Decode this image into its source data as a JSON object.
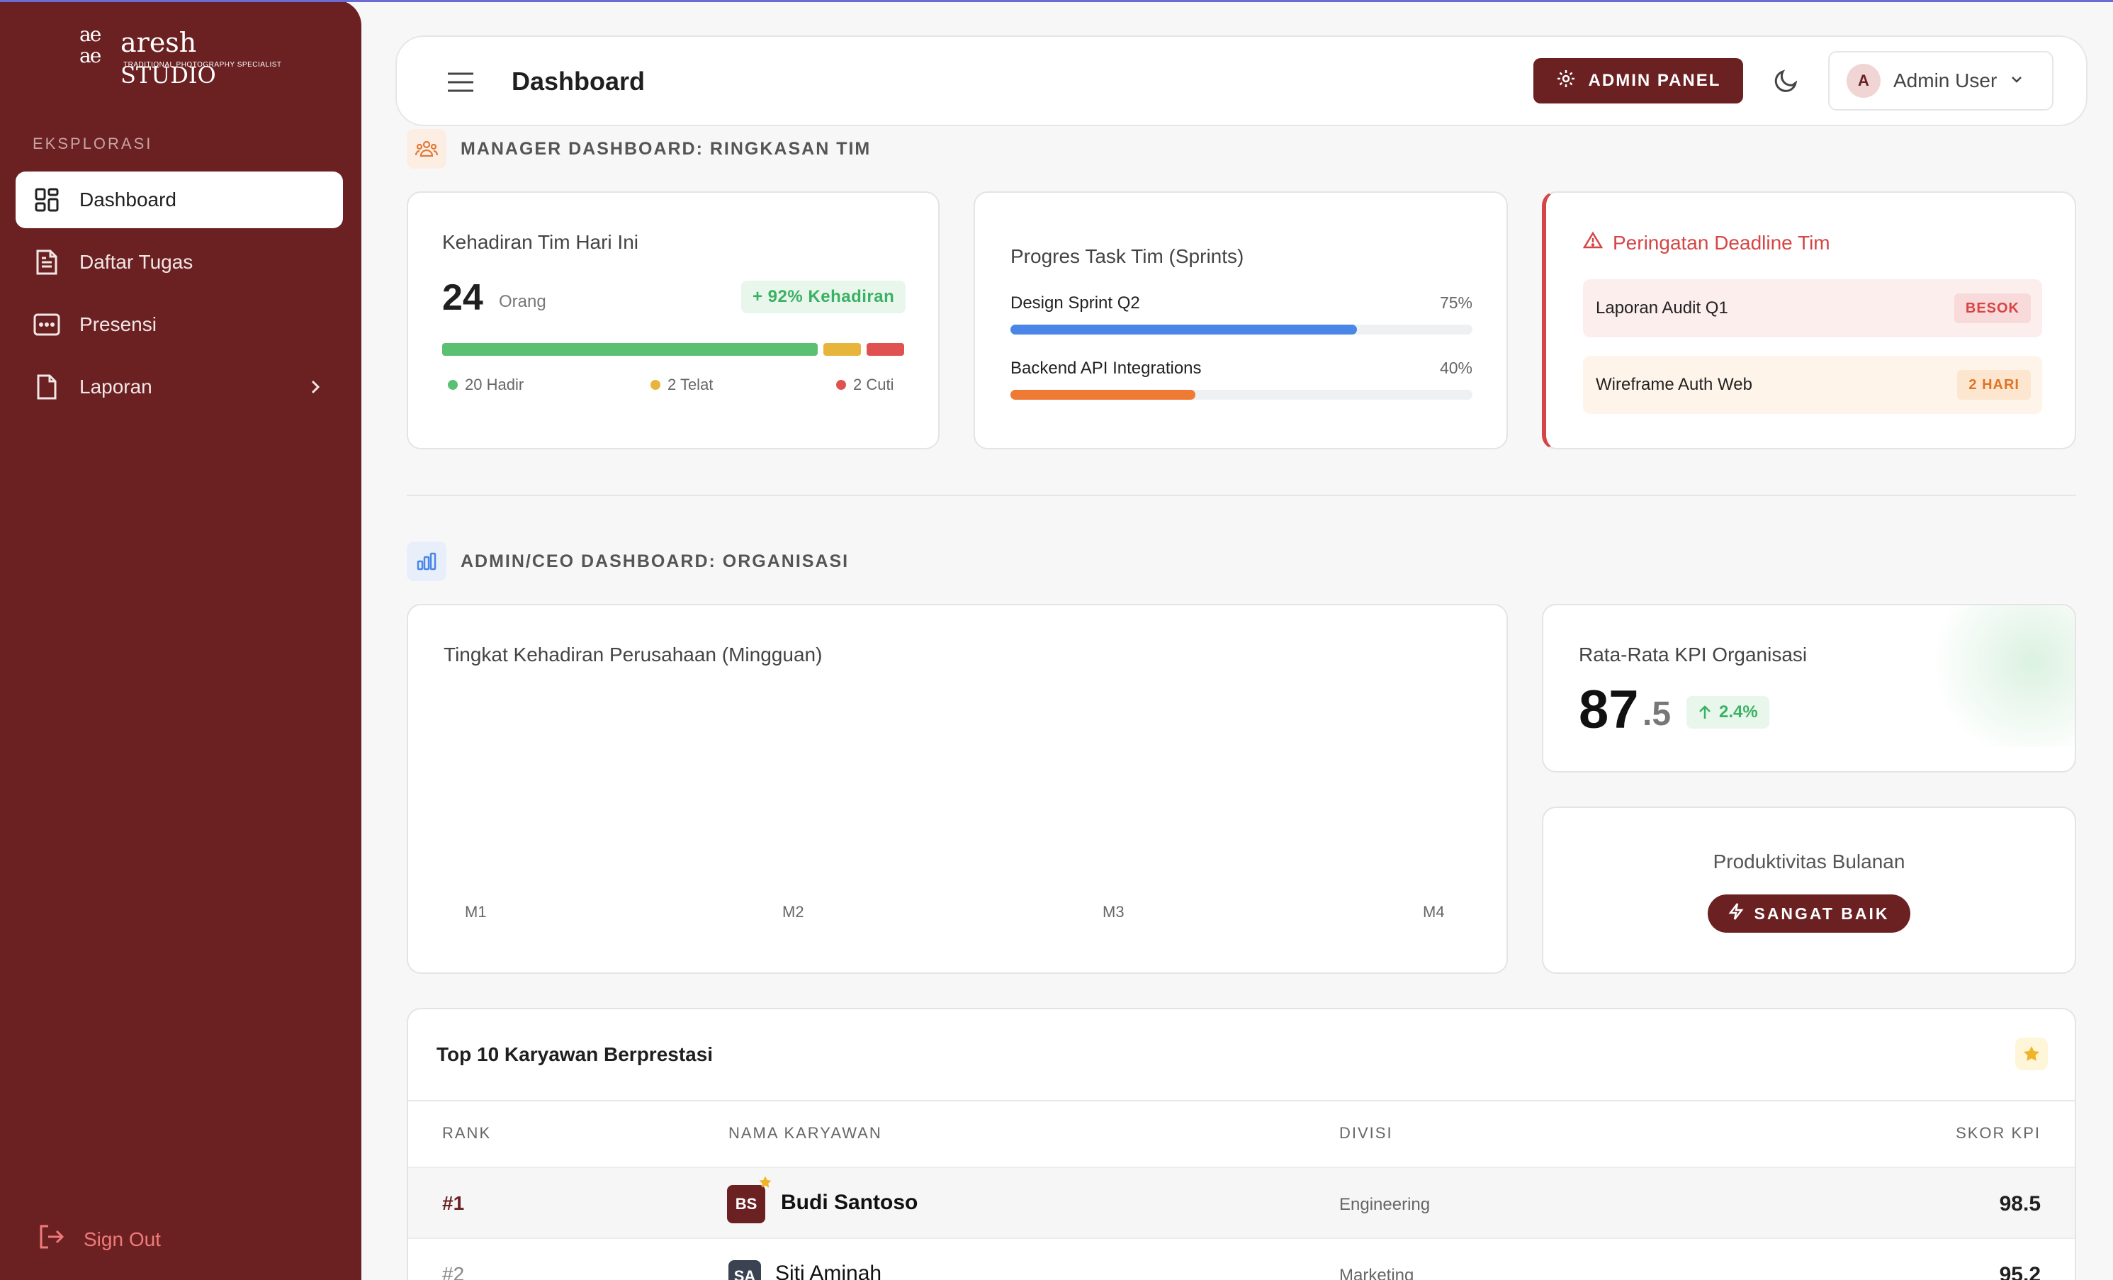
{
  "brand": {
    "mark": "a̵e̵",
    "name": "aresh",
    "name_suffix": "STUDIO",
    "tagline": "TRADITIONAL PHOTOGRAPHY SPECIALIST"
  },
  "sidebar": {
    "section_label": "EKSPLORASI",
    "items": [
      {
        "label": "Dashboard",
        "icon": "grid-icon",
        "active": true
      },
      {
        "label": "Daftar Tugas",
        "icon": "document-list-icon"
      },
      {
        "label": "Presensi",
        "icon": "calendar-dots-icon"
      },
      {
        "label": "Laporan",
        "icon": "file-icon",
        "has_children": true
      }
    ],
    "signout_label": "Sign Out"
  },
  "header": {
    "title": "Dashboard",
    "admin_button": "ADMIN PANEL",
    "user": {
      "initial": "A",
      "name": "Admin User"
    }
  },
  "manager_section": {
    "title": "MANAGER DASHBOARD: RINGKASAN TIM",
    "attendance": {
      "title": "Kehadiran Tim Hari Ini",
      "count": "24",
      "unit": "Orang",
      "rate_badge": "+ 92% Kehadiran",
      "breakdown": [
        {
          "label": "20 Hadir",
          "value": 20,
          "color": "#5cc072"
        },
        {
          "label": "2 Telat",
          "value": 2,
          "color": "#e8b53c"
        },
        {
          "label": "2 Cuti",
          "value": 2,
          "color": "#e05252"
        }
      ]
    },
    "progress": {
      "title": "Progres Task Tim (Sprints)",
      "tasks": [
        {
          "name": "Design Sprint Q2",
          "percent_label": "75%",
          "percent": 75,
          "color": "#4a86e8"
        },
        {
          "name": "Backend API Integrations",
          "percent_label": "40%",
          "percent": 40,
          "color": "#ee7a34"
        }
      ]
    },
    "deadline": {
      "title": "Peringatan Deadline Tim",
      "items": [
        {
          "name": "Laporan Audit Q1",
          "tag": "BESOK",
          "bg": "#fdeeee",
          "tag_bg": "#f9dada",
          "tag_color": "#d64545"
        },
        {
          "name": "Wireframe Auth Web",
          "tag": "2 HARI",
          "bg": "#fef4ea",
          "tag_bg": "#fde6cf",
          "tag_color": "#e07426"
        }
      ]
    }
  },
  "admin_section": {
    "title": "ADMIN/CEO DASHBOARD: ORGANISASI",
    "attendance_chart": {
      "title": "Tingkat Kehadiran Perusahaan (Mingguan)",
      "x_labels": [
        "M1",
        "M2",
        "M3",
        "M4"
      ]
    },
    "kpi": {
      "title": "Rata-Rata KPI Organisasi",
      "value_int": "87",
      "value_dec": ".5",
      "change": "2.4%"
    },
    "productivity": {
      "title": "Produktivitas Bulanan",
      "status": "SANGAT BAIK"
    }
  },
  "top_employees": {
    "title": "Top 10 Karyawan Berprestasi",
    "columns": [
      "RANK",
      "NAMA KARYAWAN",
      "DIVISI",
      "SKOR KPI"
    ],
    "rows": [
      {
        "rank": "#1",
        "initials": "BS",
        "name": "Budi Santoso",
        "division": "Engineering",
        "score": "98.5",
        "avatar_color": "#6b2122"
      },
      {
        "rank": "#2",
        "initials": "SA",
        "name": "Siti Aminah",
        "division": "Marketing",
        "score": "95.2",
        "avatar_color": "#3b4252"
      }
    ]
  }
}
